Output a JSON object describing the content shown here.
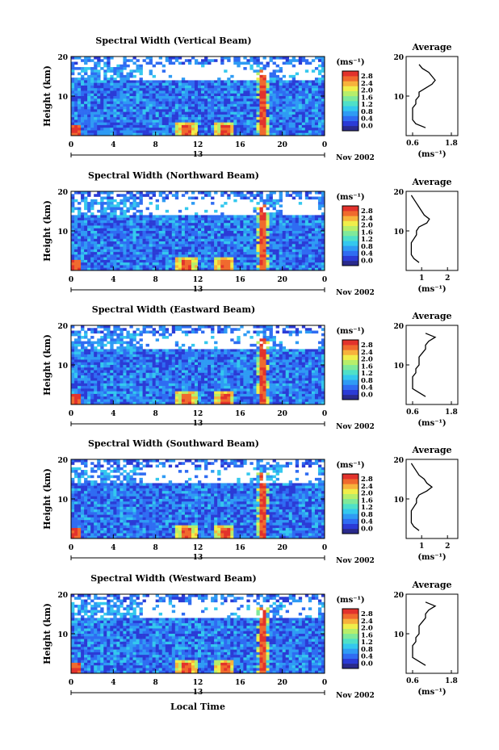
{
  "colors": {
    "scale": [
      "#2a2a8c",
      "#2b3bd6",
      "#2f6cf2",
      "#2f9bf4",
      "#34c8ee",
      "#4fe0c8",
      "#7fe99a",
      "#b7ee6a",
      "#f0ee4a",
      "#f7b23c",
      "#f06a2e",
      "#e2322c"
    ],
    "axis": "#000000",
    "profile": "#000000"
  },
  "common": {
    "ylabel": "Height (km)",
    "unit": "(ms⁻¹)",
    "date": "Nov 2002",
    "xticks": [
      "0",
      "4",
      "8",
      "12",
      "16",
      "20",
      "0"
    ],
    "below_tick": "13",
    "yticks": [
      "20",
      "10"
    ],
    "avg_title": "Average",
    "avg_yticks": [
      "20",
      "10"
    ],
    "avg_unit": "(ms⁻¹)"
  },
  "xlabel": "Local Time",
  "chart_data": [
    {
      "type": "heatmap",
      "title": "Spectral Width (Vertical Beam)",
      "colorbar_ticks": [
        "2.8",
        "2.4",
        "2.0",
        "1.6",
        "1.2",
        "0.8",
        "0.4",
        "0.0"
      ],
      "avg_xticks": [
        "0.6",
        "1.8"
      ],
      "avg_xlim": [
        0.4,
        2.0
      ],
      "avg_profile": {
        "height_km": [
          2,
          3,
          4,
          5,
          6,
          7,
          8,
          9,
          10,
          11,
          12,
          13,
          14,
          15,
          16,
          17,
          18
        ],
        "width": [
          1.0,
          0.7,
          0.6,
          0.6,
          0.6,
          0.6,
          0.7,
          0.7,
          0.8,
          0.8,
          1.0,
          1.2,
          1.3,
          1.2,
          1.1,
          0.9,
          0.8
        ]
      }
    },
    {
      "type": "heatmap",
      "title": "Spectral Width (Northward Beam)",
      "colorbar_ticks": [
        "2.8",
        "2.4",
        "2.0",
        "1.6",
        "1.2",
        "0.8",
        "0.4",
        "0.0"
      ],
      "avg_xticks": [
        "1",
        "2"
      ],
      "avg_xlim": [
        0.4,
        2.4
      ],
      "avg_profile": {
        "height_km": [
          2,
          3,
          4,
          5,
          6,
          7,
          8,
          9,
          10,
          11,
          12,
          13,
          14,
          15,
          16,
          17,
          18,
          19
        ],
        "width": [
          0.9,
          0.7,
          0.6,
          0.6,
          0.6,
          0.6,
          0.7,
          0.8,
          0.8,
          0.9,
          1.2,
          1.3,
          1.1,
          1.0,
          0.9,
          0.8,
          0.7,
          0.6
        ]
      }
    },
    {
      "type": "heatmap",
      "title": "Spectral Width (Eastward Beam)",
      "colorbar_ticks": [
        "2.8",
        "2.4",
        "2.0",
        "1.6",
        "1.2",
        "0.8",
        "0.4",
        "0.0"
      ],
      "avg_xticks": [
        "0.6",
        "1.8"
      ],
      "avg_xlim": [
        0.4,
        2.0
      ],
      "avg_profile": {
        "height_km": [
          2,
          3,
          4,
          5,
          6,
          7,
          8,
          9,
          10,
          11,
          12,
          13,
          14,
          15,
          16,
          17,
          18
        ],
        "width": [
          1.0,
          0.8,
          0.6,
          0.6,
          0.6,
          0.6,
          0.7,
          0.7,
          0.8,
          0.8,
          0.8,
          0.9,
          1.0,
          1.0,
          1.1,
          1.3,
          1.0
        ]
      }
    },
    {
      "type": "heatmap",
      "title": "Spectral Width (Southward Beam)",
      "colorbar_ticks": [
        "2.8",
        "2.4",
        "2.0",
        "1.6",
        "1.2",
        "0.8",
        "0.4",
        "0.0"
      ],
      "avg_xticks": [
        "1",
        "2"
      ],
      "avg_xlim": [
        0.4,
        2.4
      ],
      "avg_profile": {
        "height_km": [
          2,
          3,
          4,
          5,
          6,
          7,
          8,
          9,
          10,
          11,
          12,
          13,
          14,
          15,
          16,
          17,
          18,
          19
        ],
        "width": [
          0.9,
          0.7,
          0.6,
          0.6,
          0.6,
          0.6,
          0.7,
          0.8,
          0.8,
          0.9,
          1.2,
          1.4,
          1.2,
          1.1,
          0.9,
          0.8,
          0.7,
          0.6
        ]
      }
    },
    {
      "type": "heatmap",
      "title": "Spectral Width (Westward Beam)",
      "colorbar_ticks": [
        "2.8",
        "2.4",
        "2.0",
        "1.6",
        "1.2",
        "0.8",
        "0.4",
        "0.0"
      ],
      "avg_xticks": [
        "0.6",
        "1.8"
      ],
      "avg_xlim": [
        0.4,
        2.0
      ],
      "avg_profile": {
        "height_km": [
          2,
          3,
          4,
          5,
          6,
          7,
          8,
          9,
          10,
          11,
          12,
          13,
          14,
          15,
          16,
          17,
          18
        ],
        "width": [
          1.0,
          0.8,
          0.6,
          0.6,
          0.6,
          0.6,
          0.7,
          0.7,
          0.8,
          0.8,
          0.8,
          0.9,
          1.0,
          1.0,
          1.1,
          1.3,
          1.0
        ]
      }
    }
  ]
}
